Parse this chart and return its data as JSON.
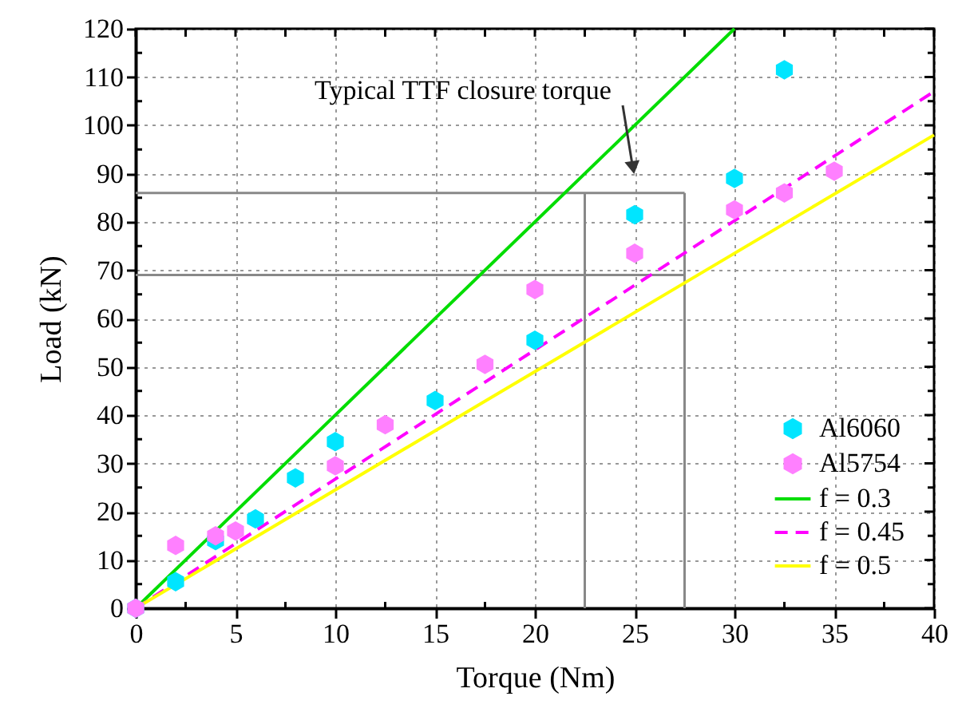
{
  "chart_data": {
    "type": "scatter",
    "xlabel": "Torque (Nm)",
    "ylabel": "Load (kN)",
    "xlim": [
      0,
      40
    ],
    "xticks": [
      0,
      5,
      10,
      15,
      20,
      25,
      30,
      35,
      40
    ],
    "ylim": [
      0,
      120
    ],
    "yticks": [
      0,
      10,
      20,
      30,
      40,
      50,
      60,
      70,
      80,
      90,
      100,
      110,
      120
    ],
    "grid": true,
    "legend": "bottom right",
    "annotations": [
      "Typical TTF closure torque"
    ],
    "ref_lines": [
      {
        "axis": "x",
        "value": 22.5,
        "color": "#888888"
      },
      {
        "axis": "x",
        "value": 27.5,
        "color": "#888888"
      },
      {
        "axis": "y",
        "value": 69,
        "color": "#888888"
      },
      {
        "axis": "y",
        "value": 86,
        "color": "#888888"
      }
    ],
    "series": [
      {
        "name": "Al6060",
        "color": "#00e5ff",
        "x": [
          0,
          2,
          4,
          6,
          8,
          10,
          15,
          20,
          25,
          30,
          32.5
        ],
        "values": [
          0,
          5.5,
          14,
          18.5,
          27,
          34.5,
          43,
          55.5,
          81.5,
          89,
          111.5
        ]
      },
      {
        "name": "Al5754",
        "color": "#ff80ff",
        "x": [
          0,
          2,
          4,
          5,
          10,
          12.5,
          17.5,
          20,
          25,
          30,
          32.5,
          35
        ],
        "values": [
          0,
          13,
          15,
          16,
          29.5,
          38,
          50.5,
          66,
          73.5,
          82.5,
          86,
          90.5
        ]
      },
      {
        "name": "f = 0.3",
        "type": "line",
        "color": "#00dd00",
        "line_style": "solid",
        "x": [
          0,
          30
        ],
        "values": [
          0,
          120
        ]
      },
      {
        "name": "f = 0.45",
        "type": "line",
        "color": "#ff00ff",
        "line_style": "dashed",
        "x": [
          0,
          40
        ],
        "values": [
          0,
          107
        ]
      },
      {
        "name": "f = 0.5",
        "type": "line",
        "color": "#ffff00",
        "line_style": "solid",
        "x": [
          0,
          40
        ],
        "values": [
          0,
          98
        ]
      }
    ]
  }
}
